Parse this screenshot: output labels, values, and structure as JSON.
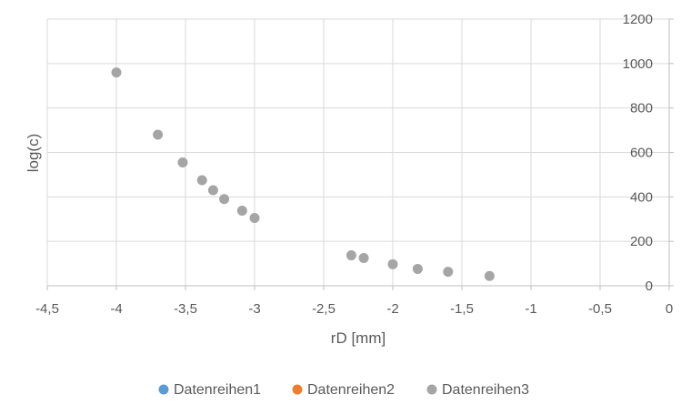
{
  "chart_data": {
    "type": "scatter",
    "xlabel": "rD [mm]",
    "ylabel": "log(c)",
    "xlim": [
      -4.5,
      0
    ],
    "ylim": [
      0,
      1200
    ],
    "x_ticks": [
      -4.5,
      -4,
      -3.5,
      -3,
      -2.5,
      -2,
      -1.5,
      -1,
      -0.5,
      0
    ],
    "x_tick_labels": [
      "-4,5",
      "-4",
      "-3,5",
      "-3",
      "-2,5",
      "-2",
      "-1,5",
      "-1",
      "-0,5",
      "0"
    ],
    "y_ticks": [
      0,
      200,
      400,
      600,
      800,
      1000,
      1200
    ],
    "y_tick_labels": [
      "0",
      "200",
      "400",
      "600",
      "800",
      "1000",
      "1200"
    ],
    "y_axis_side": "right",
    "grid": "vertical and horizontal major gridlines",
    "legend_position": "bottom",
    "series": [
      {
        "name": "Datenreihen1",
        "color": "#5b9bd5",
        "x": [],
        "y": []
      },
      {
        "name": "Datenreihen2",
        "color": "#ed7d31",
        "x": [],
        "y": []
      },
      {
        "name": "Datenreihen3",
        "color": "#a5a5a5",
        "x": [
          -4.0,
          -3.7,
          -3.52,
          -3.38,
          -3.3,
          -3.22,
          -3.09,
          -3.0,
          -2.3,
          -2.21,
          -2.0,
          -1.82,
          -1.6,
          -1.3
        ],
        "y": [
          960,
          680,
          555,
          475,
          430,
          390,
          338,
          305,
          137,
          125,
          97,
          76,
          63,
          44
        ]
      }
    ]
  }
}
